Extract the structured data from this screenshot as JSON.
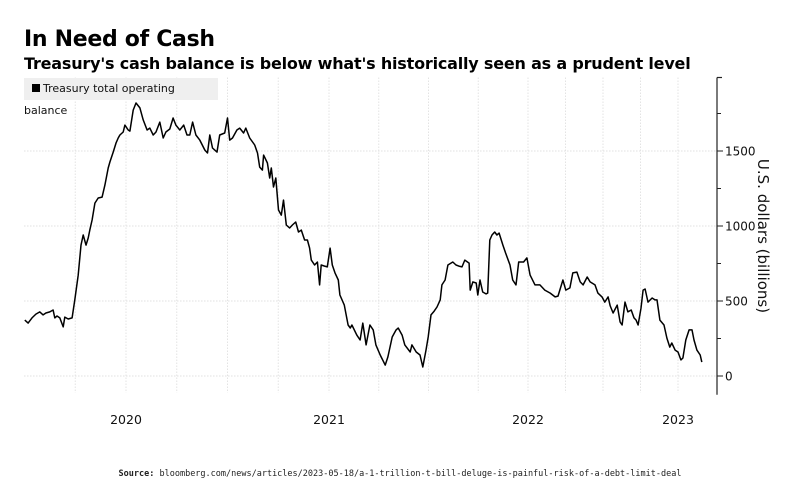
{
  "header": {
    "title": "In Need of Cash",
    "subtitle": "Treasury's cash balance is below what's historically seen as a prudent level"
  },
  "source": {
    "label": "Source:",
    "text": "bloomberg.com/news/articles/2023-05-18/a-1-trillion-t-bill-deluge-is-painful-risk-of-a-debt-limit-deal"
  },
  "chart_data": {
    "type": "line",
    "title": "In Need of Cash",
    "subtitle": "Treasury's cash balance is below what's historically seen as a prudent level",
    "xlabel": "",
    "ylabel": "U.S. dollars (billions)",
    "y_axis_side": "right",
    "ylim": [
      -125,
      1990
    ],
    "xlim": [
      "2019-06-01",
      "2023-04-05"
    ],
    "yticks": [
      0,
      500,
      1000,
      1500
    ],
    "ytick_labels": [
      "0",
      "500",
      "1000",
      "1500"
    ],
    "xticks": [
      "2020",
      "2021",
      "2022",
      "2023"
    ],
    "grid": true,
    "legend_placement": "top-left",
    "colors": {
      "line": "#000000",
      "grid": "#e3e3e3",
      "legend_bg": "#efefef"
    },
    "series": [
      {
        "name": "Treasury total operating balance",
        "points": [
          [
            "2019-07-03",
            373
          ],
          [
            "2019-07-09",
            353
          ],
          [
            "2019-07-16",
            387
          ],
          [
            "2019-07-23",
            413
          ],
          [
            "2019-07-30",
            427
          ],
          [
            "2019-08-05",
            407
          ],
          [
            "2019-08-10",
            420
          ],
          [
            "2019-08-17",
            427
          ],
          [
            "2019-08-23",
            440
          ],
          [
            "2019-08-26",
            387
          ],
          [
            "2019-08-30",
            400
          ],
          [
            "2019-09-04",
            387
          ],
          [
            "2019-09-10",
            327
          ],
          [
            "2019-09-13",
            393
          ],
          [
            "2019-09-19",
            380
          ],
          [
            "2019-09-26",
            387
          ],
          [
            "2019-10-01",
            507
          ],
          [
            "2019-10-07",
            673
          ],
          [
            "2019-10-12",
            873
          ],
          [
            "2019-10-16",
            940
          ],
          [
            "2019-10-21",
            873
          ],
          [
            "2019-10-25",
            920
          ],
          [
            "2019-10-28",
            973
          ],
          [
            "2019-11-01",
            1040
          ],
          [
            "2019-11-06",
            1153
          ],
          [
            "2019-11-12",
            1187
          ],
          [
            "2019-11-19",
            1193
          ],
          [
            "2019-11-24",
            1273
          ],
          [
            "2019-11-30",
            1387
          ],
          [
            "2019-12-03",
            1427
          ],
          [
            "2019-12-09",
            1493
          ],
          [
            "2019-12-14",
            1553
          ],
          [
            "2019-12-18",
            1587
          ],
          [
            "2019-12-21",
            1607
          ],
          [
            "2019-12-27",
            1627
          ],
          [
            "2019-12-30",
            1673
          ],
          [
            "2020-01-05",
            1640
          ],
          [
            "2020-01-08",
            1633
          ],
          [
            "2020-01-14",
            1773
          ],
          [
            "2020-01-19",
            1820
          ],
          [
            "2020-01-26",
            1787
          ],
          [
            "2020-02-01",
            1707
          ],
          [
            "2020-02-08",
            1640
          ],
          [
            "2020-02-13",
            1653
          ],
          [
            "2020-02-19",
            1607
          ],
          [
            "2020-02-24",
            1627
          ],
          [
            "2020-03-02",
            1693
          ],
          [
            "2020-03-08",
            1587
          ],
          [
            "2020-03-13",
            1627
          ],
          [
            "2020-03-20",
            1647
          ],
          [
            "2020-03-26",
            1720
          ],
          [
            "2020-03-31",
            1673
          ],
          [
            "2020-04-07",
            1640
          ],
          [
            "2020-04-14",
            1673
          ],
          [
            "2020-04-20",
            1607
          ],
          [
            "2020-04-25",
            1607
          ],
          [
            "2020-04-30",
            1693
          ],
          [
            "2020-05-06",
            1607
          ],
          [
            "2020-05-13",
            1573
          ],
          [
            "2020-05-22",
            1507
          ],
          [
            "2020-05-27",
            1487
          ],
          [
            "2020-05-31",
            1607
          ],
          [
            "2020-06-05",
            1520
          ],
          [
            "2020-06-13",
            1493
          ],
          [
            "2020-06-18",
            1607
          ],
          [
            "2020-06-27",
            1620
          ],
          [
            "2020-07-02",
            1720
          ],
          [
            "2020-07-06",
            1573
          ],
          [
            "2020-07-11",
            1587
          ],
          [
            "2020-07-19",
            1640
          ],
          [
            "2020-07-24",
            1653
          ],
          [
            "2020-07-31",
            1620
          ],
          [
            "2020-08-04",
            1653
          ],
          [
            "2020-08-11",
            1587
          ],
          [
            "2020-08-20",
            1540
          ],
          [
            "2020-08-25",
            1487
          ],
          [
            "2020-08-29",
            1393
          ],
          [
            "2020-09-03",
            1373
          ],
          [
            "2020-09-05",
            1473
          ],
          [
            "2020-09-12",
            1420
          ],
          [
            "2020-09-16",
            1320
          ],
          [
            "2020-09-19",
            1387
          ],
          [
            "2020-09-23",
            1260
          ],
          [
            "2020-09-27",
            1320
          ],
          [
            "2020-10-02",
            1107
          ],
          [
            "2020-10-07",
            1073
          ],
          [
            "2020-10-11",
            1173
          ],
          [
            "2020-10-16",
            1007
          ],
          [
            "2020-10-22",
            987
          ],
          [
            "2020-10-27",
            1007
          ],
          [
            "2020-11-02",
            1027
          ],
          [
            "2020-11-07",
            960
          ],
          [
            "2020-11-12",
            973
          ],
          [
            "2020-11-18",
            907
          ],
          [
            "2020-11-23",
            907
          ],
          [
            "2020-11-27",
            853
          ],
          [
            "2020-11-30",
            773
          ],
          [
            "2020-12-06",
            740
          ],
          [
            "2020-12-11",
            760
          ],
          [
            "2020-12-15",
            607
          ],
          [
            "2020-12-18",
            740
          ],
          [
            "2020-12-24",
            733
          ],
          [
            "2020-12-29",
            727
          ],
          [
            "2021-01-03",
            853
          ],
          [
            "2021-01-07",
            740
          ],
          [
            "2021-01-12",
            687
          ],
          [
            "2021-01-18",
            640
          ],
          [
            "2021-01-21",
            540
          ],
          [
            "2021-01-29",
            473
          ],
          [
            "2021-02-05",
            340
          ],
          [
            "2021-02-09",
            320
          ],
          [
            "2021-02-12",
            340
          ],
          [
            "2021-02-21",
            273
          ],
          [
            "2021-02-27",
            240
          ],
          [
            "2021-03-04",
            353
          ],
          [
            "2021-03-10",
            207
          ],
          [
            "2021-03-17",
            340
          ],
          [
            "2021-03-23",
            307
          ],
          [
            "2021-03-28",
            207
          ],
          [
            "2021-04-05",
            140
          ],
          [
            "2021-04-14",
            73
          ],
          [
            "2021-04-19",
            127
          ],
          [
            "2021-04-27",
            260
          ],
          [
            "2021-05-04",
            307
          ],
          [
            "2021-05-08",
            320
          ],
          [
            "2021-05-15",
            273
          ],
          [
            "2021-05-20",
            207
          ],
          [
            "2021-05-30",
            160
          ],
          [
            "2021-06-02",
            207
          ],
          [
            "2021-06-10",
            160
          ],
          [
            "2021-06-17",
            140
          ],
          [
            "2021-06-22",
            60
          ],
          [
            "2021-06-28",
            173
          ],
          [
            "2021-07-02",
            260
          ],
          [
            "2021-07-07",
            407
          ],
          [
            "2021-07-13",
            433
          ],
          [
            "2021-07-18",
            460
          ],
          [
            "2021-07-24",
            507
          ],
          [
            "2021-07-27",
            607
          ],
          [
            "2021-08-02",
            640
          ],
          [
            "2021-08-07",
            740
          ],
          [
            "2021-08-16",
            760
          ],
          [
            "2021-08-22",
            740
          ],
          [
            "2021-08-27",
            733
          ],
          [
            "2021-09-02",
            727
          ],
          [
            "2021-09-07",
            773
          ],
          [
            "2021-09-15",
            753
          ],
          [
            "2021-09-17",
            573
          ],
          [
            "2021-09-22",
            627
          ],
          [
            "2021-09-28",
            620
          ],
          [
            "2021-10-01",
            540
          ],
          [
            "2021-10-05",
            640
          ],
          [
            "2021-10-10",
            560
          ],
          [
            "2021-10-16",
            547
          ],
          [
            "2021-10-19",
            553
          ],
          [
            "2021-10-23",
            907
          ],
          [
            "2021-10-27",
            940
          ],
          [
            "2021-11-01",
            960
          ],
          [
            "2021-11-05",
            940
          ],
          [
            "2021-11-09",
            953
          ],
          [
            "2021-11-16",
            873
          ],
          [
            "2021-11-21",
            820
          ],
          [
            "2021-11-29",
            740
          ],
          [
            "2021-12-04",
            640
          ],
          [
            "2021-12-10",
            607
          ],
          [
            "2021-12-15",
            760
          ],
          [
            "2021-12-24",
            760
          ],
          [
            "2021-12-30",
            787
          ],
          [
            "2022-01-06",
            673
          ],
          [
            "2022-01-18",
            607
          ],
          [
            "2022-01-30",
            607
          ],
          [
            "2022-02-11",
            573
          ],
          [
            "2022-02-24",
            553
          ],
          [
            "2022-03-08",
            527
          ],
          [
            "2022-03-15",
            533
          ],
          [
            "2022-03-27",
            640
          ],
          [
            "2022-04-03",
            573
          ],
          [
            "2022-04-13",
            587
          ],
          [
            "2022-04-20",
            687
          ],
          [
            "2022-04-30",
            693
          ],
          [
            "2022-05-08",
            627
          ],
          [
            "2022-05-15",
            607
          ],
          [
            "2022-05-25",
            660
          ],
          [
            "2022-06-01",
            627
          ],
          [
            "2022-06-13",
            607
          ],
          [
            "2022-06-20",
            553
          ],
          [
            "2022-06-30",
            527
          ],
          [
            "2022-07-07",
            493
          ],
          [
            "2022-07-15",
            527
          ],
          [
            "2022-07-20",
            467
          ],
          [
            "2022-07-27",
            420
          ],
          [
            "2022-08-06",
            473
          ],
          [
            "2022-08-13",
            360
          ],
          [
            "2022-08-18",
            340
          ],
          [
            "2022-08-25",
            493
          ],
          [
            "2022-09-01",
            427
          ],
          [
            "2022-09-09",
            440
          ],
          [
            "2022-09-16",
            387
          ],
          [
            "2022-09-21",
            373
          ],
          [
            "2022-09-26",
            340
          ],
          [
            "2022-10-03",
            453
          ],
          [
            "2022-10-08",
            573
          ],
          [
            "2022-10-13",
            580
          ],
          [
            "2022-10-20",
            493
          ],
          [
            "2022-10-30",
            520
          ],
          [
            "2022-11-06",
            507
          ],
          [
            "2022-11-11",
            507
          ],
          [
            "2022-11-18",
            373
          ],
          [
            "2022-11-28",
            340
          ],
          [
            "2022-12-05",
            253
          ],
          [
            "2022-12-12",
            193
          ],
          [
            "2022-12-17",
            220
          ],
          [
            "2022-12-25",
            173
          ],
          [
            "2023-01-01",
            160
          ],
          [
            "2023-01-08",
            107
          ],
          [
            "2023-01-13",
            120
          ],
          [
            "2023-01-20",
            240
          ],
          [
            "2023-01-28",
            307
          ],
          [
            "2023-02-04",
            307
          ],
          [
            "2023-02-09",
            240
          ],
          [
            "2023-02-16",
            173
          ],
          [
            "2023-02-24",
            140
          ],
          [
            "2023-02-28",
            93
          ]
        ]
      }
    ]
  }
}
